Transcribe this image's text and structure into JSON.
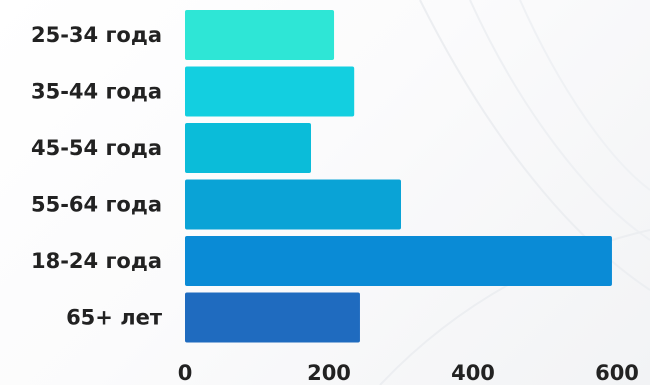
{
  "chart_data": {
    "type": "bar",
    "orientation": "horizontal",
    "categories": [
      "25-34 года",
      "35-44 года",
      "45-54 года",
      "55-64 года",
      "18-24 года",
      "65+ лет"
    ],
    "values": [
      207,
      235,
      175,
      300,
      593,
      243
    ],
    "title": "",
    "xlabel": "",
    "ylabel": "",
    "xlim": [
      0,
      600
    ],
    "xticks": [
      0,
      200,
      400,
      600
    ],
    "xtick_labels": [
      "0",
      "200",
      "400",
      "600"
    ],
    "grid": false,
    "legend": "none",
    "bar_colors": [
      "#2ee6d6",
      "#13cfe0",
      "#0bbcd9",
      "#0aa3d6",
      "#0a8bd6",
      "#1f6bbf"
    ]
  }
}
